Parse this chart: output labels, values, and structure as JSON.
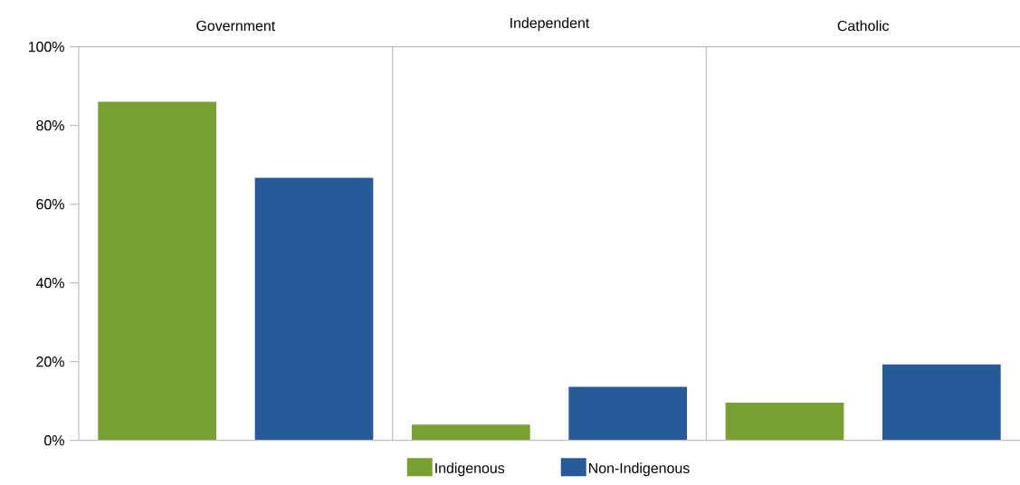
{
  "chart_data": {
    "type": "bar",
    "categories": [
      "Government",
      "Independent",
      "Catholic"
    ],
    "series": [
      {
        "name": "Indigenous",
        "color": "#78a032",
        "values": [
          86,
          4,
          9.6
        ]
      },
      {
        "name": "Non-Indigenous",
        "color": "#275a99",
        "values": [
          66.7,
          13.6,
          19.3
        ]
      }
    ],
    "ylim": [
      0,
      100
    ],
    "yticks": [
      {
        "value": 0,
        "label": "0%"
      },
      {
        "value": 20,
        "label": "20%"
      },
      {
        "value": 40,
        "label": "40%"
      },
      {
        "value": 60,
        "label": "60%"
      },
      {
        "value": 80,
        "label": "80%"
      },
      {
        "value": 100,
        "label": "100%"
      }
    ],
    "legend": "bottom"
  }
}
